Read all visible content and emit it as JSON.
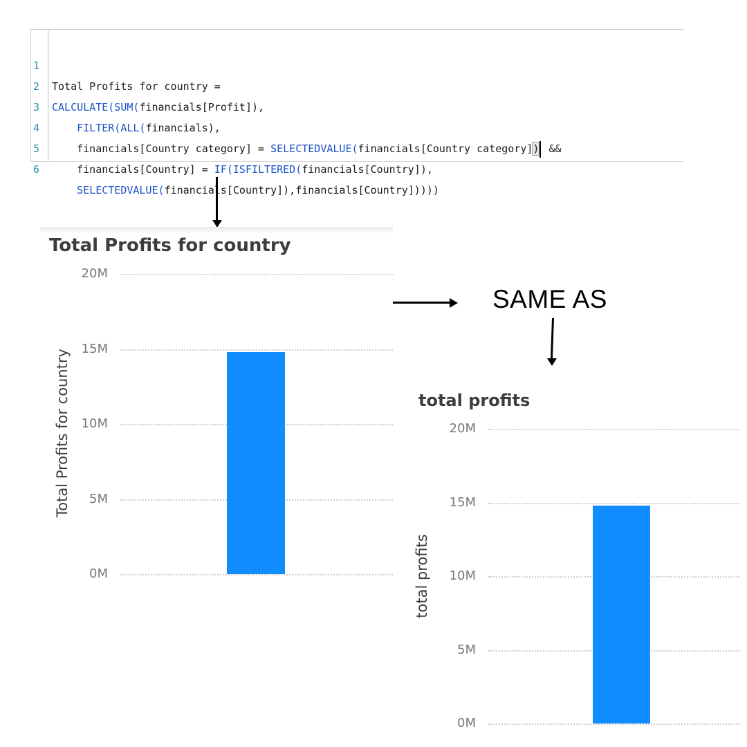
{
  "editor": {
    "lines": [
      {
        "num": "1",
        "text": "Total Profits for country ="
      },
      {
        "num": "2",
        "fn": "CALCULATE(SUM(",
        "text": "financials[Profit]),"
      },
      {
        "num": "3",
        "pre": "    ",
        "fn": "FILTER(ALL(",
        "text": "financials),"
      },
      {
        "num": "4",
        "pre": "    financials[Country category] = ",
        "fn": "SELECTEDVALUE(",
        "hl": "(",
        "text": "financials[Country category]",
        "hl2": ")",
        "post": " &&"
      },
      {
        "num": "5",
        "pre": "    financials[Country] = ",
        "fn": "IF(ISFILTERED(",
        "text": "financials[Country]),"
      },
      {
        "num": "6",
        "pre": "    ",
        "fn": "SELECTEDVALUE(",
        "text": "financials[Country]),financials[Country]))))"
      }
    ]
  },
  "same_as_label": "SAME AS",
  "chart_data": [
    {
      "type": "bar",
      "title": "Total Profits for country",
      "ylabel": "Total Profits for country",
      "xlabel": "",
      "categories": [
        ""
      ],
      "values": [
        14800000
      ],
      "ylim": [
        0,
        20000000
      ],
      "yticks": [
        "0M",
        "5M",
        "10M",
        "15M",
        "20M"
      ],
      "grid": true,
      "color": "#118dff"
    },
    {
      "type": "bar",
      "title": "total profits",
      "ylabel": "total profits",
      "xlabel": "",
      "categories": [
        ""
      ],
      "values": [
        14800000
      ],
      "ylim": [
        0,
        20000000
      ],
      "yticks": [
        "0M",
        "5M",
        "10M",
        "15M",
        "20M"
      ],
      "grid": true,
      "color": "#118dff"
    }
  ]
}
